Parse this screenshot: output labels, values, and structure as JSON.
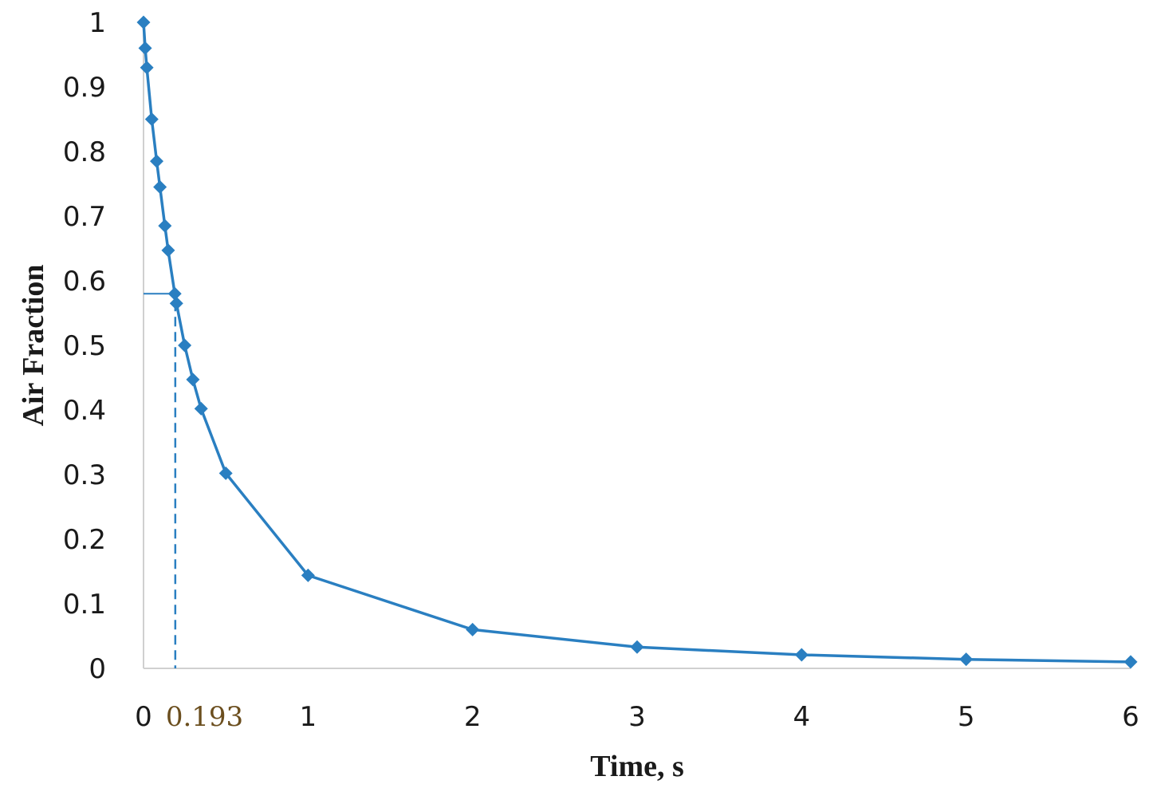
{
  "chart_data": {
    "type": "line",
    "title": "",
    "xlabel": "Time, s",
    "ylabel": "Air Fraction",
    "xlim": [
      0,
      6
    ],
    "ylim": [
      0,
      1
    ],
    "x_ticks": [
      0,
      1,
      2,
      3,
      4,
      5,
      6
    ],
    "y_ticks": [
      0,
      0.1,
      0.2,
      0.3,
      0.4,
      0.5,
      0.6,
      0.7,
      0.8,
      0.9,
      1
    ],
    "x_tick_labels": [
      "0",
      "1",
      "2",
      "3",
      "4",
      "5",
      "6"
    ],
    "y_tick_labels": [
      "0",
      "0.1",
      "0.2",
      "0.3",
      "0.4",
      "0.5",
      "0.6",
      "0.7",
      "0.8",
      "0.9",
      "1"
    ],
    "grid": false,
    "legend": "none",
    "series": [
      {
        "color": "#2a7fc1",
        "marker": "diamond",
        "x": [
          0,
          0.01,
          0.02,
          0.05,
          0.08,
          0.1,
          0.13,
          0.15,
          0.19,
          0.2,
          0.25,
          0.3,
          0.35,
          0.5,
          1,
          2,
          3,
          4,
          5,
          6
        ],
        "y": [
          1,
          0.96,
          0.93,
          0.85,
          0.785,
          0.745,
          0.685,
          0.647,
          0.58,
          0.565,
          0.5,
          0.447,
          0.402,
          0.302,
          0.144,
          0.06,
          0.033,
          0.021,
          0.014,
          0.01
        ]
      }
    ],
    "annotation": {
      "label": "0.193",
      "x": 0.193,
      "y": 0.58
    }
  }
}
